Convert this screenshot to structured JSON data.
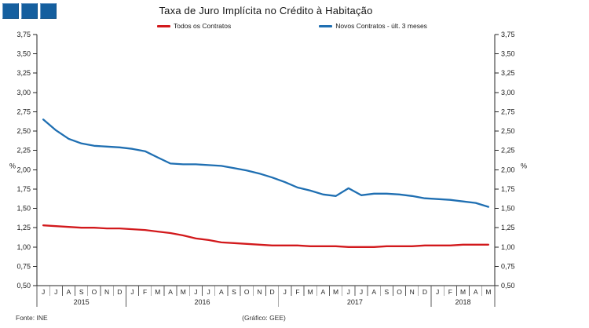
{
  "title": "Taxa de Juro Implícita no Crédito à Habitação",
  "logo": {
    "color": "#155F9F"
  },
  "footer": {
    "source": "Fonte: INE",
    "credit": "(Gráfico: GEE)"
  },
  "chart_data": {
    "type": "line",
    "title": "Taxa de Juro Implícita no Crédito à Habitação",
    "ylabel": "%",
    "ylim": [
      0.5,
      3.75
    ],
    "ytick_step": 0.25,
    "ytick_labels": [
      "0,50",
      "0,75",
      "1,00",
      "1,25",
      "1,50",
      "1,75",
      "2,00",
      "2,25",
      "2,50",
      "2,75",
      "3,00",
      "3,25",
      "3,50",
      "3,75"
    ],
    "grid": false,
    "legend_position": "top",
    "x_months": [
      "J",
      "J",
      "A",
      "S",
      "O",
      "N",
      "D",
      "J",
      "F",
      "M",
      "A",
      "M",
      "J",
      "J",
      "A",
      "S",
      "O",
      "N",
      "D",
      "J",
      "F",
      "M",
      "A",
      "M",
      "J",
      "J",
      "A",
      "S",
      "O",
      "N",
      "D",
      "J",
      "F",
      "M",
      "A",
      "M"
    ],
    "x_years": [
      {
        "label": "2015",
        "from": 0,
        "to": 7
      },
      {
        "label": "2016",
        "from": 7,
        "to": 19
      },
      {
        "label": "2017",
        "from": 19,
        "to": 31
      },
      {
        "label": "2018",
        "from": 31,
        "to": 36
      }
    ],
    "series": [
      {
        "name": "Todos os Contratos",
        "color": "#D2191C",
        "values": [
          1.28,
          1.27,
          1.26,
          1.25,
          1.25,
          1.24,
          1.24,
          1.23,
          1.22,
          1.2,
          1.18,
          1.15,
          1.11,
          1.09,
          1.06,
          1.05,
          1.04,
          1.03,
          1.02,
          1.02,
          1.02,
          1.01,
          1.01,
          1.01,
          1.0,
          1.0,
          1.0,
          1.01,
          1.01,
          1.01,
          1.02,
          1.02,
          1.02,
          1.03,
          1.03,
          1.03
        ]
      },
      {
        "name": "Novos Contratos - últ. 3 meses",
        "color": "#1F6FB2",
        "values": [
          2.65,
          2.51,
          2.4,
          2.34,
          2.31,
          2.3,
          2.29,
          2.27,
          2.24,
          2.16,
          2.08,
          2.07,
          2.07,
          2.06,
          2.05,
          2.02,
          1.99,
          1.95,
          1.9,
          1.84,
          1.77,
          1.73,
          1.68,
          1.66,
          1.76,
          1.67,
          1.69,
          1.69,
          1.68,
          1.66,
          1.63,
          1.62,
          1.61,
          1.59,
          1.57,
          1.52
        ]
      }
    ]
  }
}
